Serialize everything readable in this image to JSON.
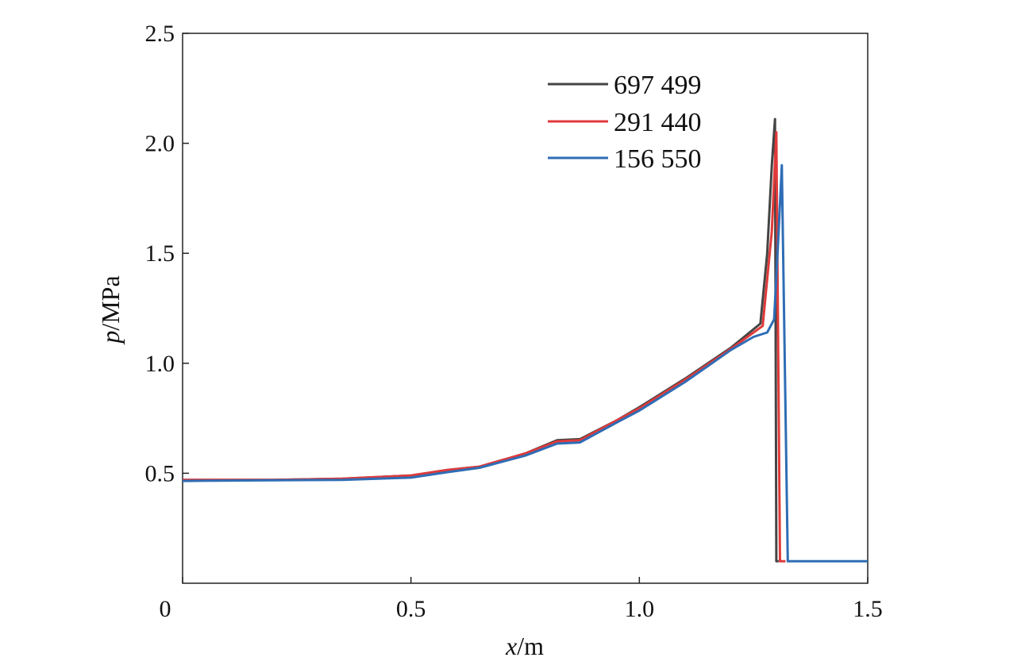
{
  "chart_data": {
    "type": "line",
    "xlabel": {
      "var": "x",
      "unit": "/m"
    },
    "ylabel": {
      "var": "p",
      "unit": "/MPa"
    },
    "xlim": [
      0,
      1.5
    ],
    "ylim": [
      0.0,
      2.5
    ],
    "x_ticks": [
      0,
      0.5,
      1.0,
      1.5
    ],
    "x_tick_labels": [
      "0",
      "0.5",
      "1.0",
      "1.5"
    ],
    "y_ticks": [
      0.5,
      1.0,
      1.5,
      2.0,
      2.5
    ],
    "y_tick_labels": [
      "0.5",
      "1.0",
      "1.5",
      "2.0",
      "2.5"
    ],
    "grid": false,
    "legend_position": "top-right",
    "series": [
      {
        "name": "697 499",
        "color": "#444444",
        "points": [
          [
            0,
            0.47
          ],
          [
            0.2,
            0.47
          ],
          [
            0.35,
            0.475
          ],
          [
            0.5,
            0.49
          ],
          [
            0.58,
            0.515
          ],
          [
            0.65,
            0.53
          ],
          [
            0.75,
            0.59
          ],
          [
            0.82,
            0.65
          ],
          [
            0.87,
            0.655
          ],
          [
            0.95,
            0.74
          ],
          [
            1.0,
            0.8
          ],
          [
            1.1,
            0.93
          ],
          [
            1.2,
            1.07
          ],
          [
            1.265,
            1.18
          ],
          [
            1.28,
            1.5
          ],
          [
            1.29,
            1.9
          ],
          [
            1.297,
            2.11
          ],
          [
            1.3,
            0.1
          ],
          [
            1.305,
            0.1
          ]
        ]
      },
      {
        "name": "291 440",
        "color": "#e03a3a",
        "points": [
          [
            0,
            0.47
          ],
          [
            0.2,
            0.47
          ],
          [
            0.35,
            0.475
          ],
          [
            0.5,
            0.49
          ],
          [
            0.58,
            0.515
          ],
          [
            0.65,
            0.53
          ],
          [
            0.75,
            0.59
          ],
          [
            0.82,
            0.645
          ],
          [
            0.87,
            0.65
          ],
          [
            0.95,
            0.74
          ],
          [
            1.0,
            0.795
          ],
          [
            1.1,
            0.925
          ],
          [
            1.2,
            1.065
          ],
          [
            1.27,
            1.17
          ],
          [
            1.29,
            1.6
          ],
          [
            1.3,
            2.05
          ],
          [
            1.308,
            0.1
          ],
          [
            1.32,
            0.1
          ]
        ]
      },
      {
        "name": "156 550",
        "color": "#2f6db5",
        "points": [
          [
            0,
            0.465
          ],
          [
            0.2,
            0.468
          ],
          [
            0.35,
            0.47
          ],
          [
            0.5,
            0.48
          ],
          [
            0.58,
            0.505
          ],
          [
            0.65,
            0.525
          ],
          [
            0.75,
            0.58
          ],
          [
            0.82,
            0.635
          ],
          [
            0.87,
            0.64
          ],
          [
            0.95,
            0.73
          ],
          [
            1.0,
            0.785
          ],
          [
            1.1,
            0.915
          ],
          [
            1.2,
            1.06
          ],
          [
            1.25,
            1.12
          ],
          [
            1.28,
            1.14
          ],
          [
            1.295,
            1.2
          ],
          [
            1.305,
            1.6
          ],
          [
            1.312,
            1.9
          ],
          [
            1.325,
            0.1
          ],
          [
            1.5,
            0.1
          ]
        ]
      }
    ]
  }
}
